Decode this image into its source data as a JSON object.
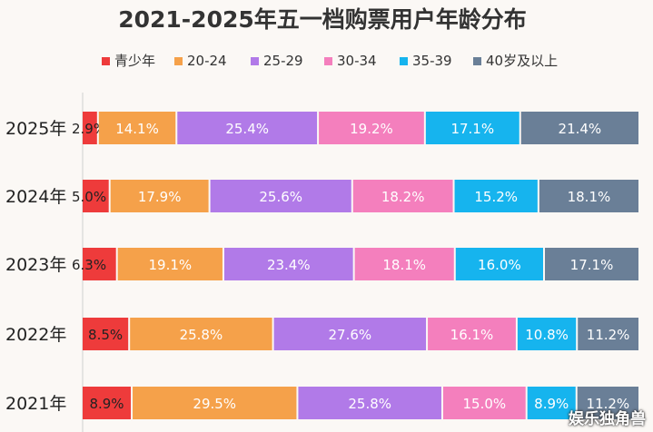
{
  "chart_data": {
    "type": "bar",
    "orientation": "horizontal",
    "stacked": true,
    "normalized": true,
    "title": "2021-2025年五一档购票用户年龄分布",
    "legend_position": "top",
    "categories": [
      "2025年",
      "2024年",
      "2023年",
      "2022年",
      "2021年"
    ],
    "series": [
      {
        "name": "青少年",
        "color": "#ee3b3b",
        "values": [
          2.9,
          5.0,
          6.3,
          8.5,
          8.9
        ],
        "labels": [
          "2.9%",
          "5.0%",
          "6.3%",
          "8.5%",
          "8.9%"
        ]
      },
      {
        "name": "20-24",
        "color": "#f5a14a",
        "values": [
          14.1,
          17.9,
          19.1,
          25.8,
          29.5
        ],
        "labels": [
          "14.1%",
          "17.9%",
          "19.1%",
          "25.8%",
          "29.5%"
        ]
      },
      {
        "name": "25-29",
        "color": "#b17ae8",
        "values": [
          25.4,
          25.6,
          23.4,
          27.6,
          25.8
        ],
        "labels": [
          "25.4%",
          "25.6%",
          "23.4%",
          "27.6%",
          "25.8%"
        ]
      },
      {
        "name": "30-34",
        "color": "#f47fbd",
        "values": [
          19.2,
          18.2,
          18.1,
          16.1,
          15.0
        ],
        "labels": [
          "19.2%",
          "18.2%",
          "18.1%",
          "16.1%",
          "15.0%"
        ]
      },
      {
        "name": "35-39",
        "color": "#16b4ee",
        "values": [
          17.1,
          15.2,
          16.0,
          10.8,
          8.9
        ],
        "labels": [
          "17.1%",
          "15.2%",
          "16.0%",
          "10.8%",
          "8.9%"
        ]
      },
      {
        "name": "40岁及以上",
        "color": "#6a7f97",
        "values": [
          21.4,
          18.1,
          17.1,
          11.2,
          11.2
        ],
        "labels": [
          "21.4%",
          "18.1%",
          "17.1%",
          "11.2%",
          "11.2%"
        ]
      }
    ]
  },
  "watermark": "娱乐独角兽"
}
